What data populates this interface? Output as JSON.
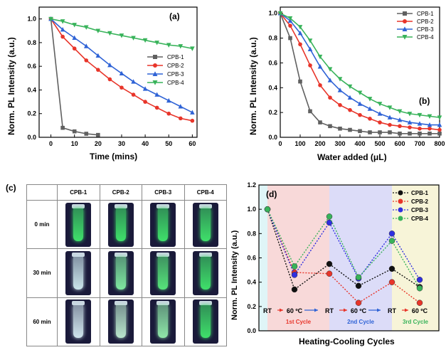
{
  "panels": {
    "a": {
      "label": "(a)"
    },
    "b": {
      "label": "(b)"
    },
    "c": {
      "label": "(c)"
    },
    "d": {
      "label": "(d)"
    }
  },
  "chart_data": [
    {
      "id": "a",
      "type": "line",
      "xlabel": "Time (mins)",
      "ylabel": "Norm. PL Intensity (a.u.)",
      "xlim": [
        -5,
        62
      ],
      "ylim": [
        0,
        1.1
      ],
      "xticks": [
        0,
        10,
        20,
        30,
        40,
        50,
        60
      ],
      "yticks": [
        0.0,
        0.2,
        0.4,
        0.6,
        0.8,
        1.0
      ],
      "legend_position": "center-right",
      "series": [
        {
          "name": "CPB-1",
          "color": "#606060",
          "marker": "square",
          "x": [
            0,
            5,
            10,
            15,
            20
          ],
          "y": [
            1.0,
            0.08,
            0.05,
            0.03,
            0.02
          ]
        },
        {
          "name": "CPB-2",
          "color": "#e8352a",
          "marker": "circle",
          "x": [
            0,
            5,
            10,
            15,
            20,
            25,
            30,
            35,
            40,
            45,
            50,
            55,
            60
          ],
          "y": [
            1.0,
            0.85,
            0.75,
            0.65,
            0.57,
            0.49,
            0.42,
            0.36,
            0.3,
            0.25,
            0.2,
            0.16,
            0.14
          ]
        },
        {
          "name": "CPB-3",
          "color": "#2f63d6",
          "marker": "triangle-up",
          "x": [
            0,
            5,
            10,
            15,
            20,
            25,
            30,
            35,
            40,
            45,
            50,
            55,
            60
          ],
          "y": [
            1.0,
            0.91,
            0.84,
            0.77,
            0.69,
            0.61,
            0.54,
            0.47,
            0.41,
            0.36,
            0.31,
            0.26,
            0.21
          ]
        },
        {
          "name": "CPB-4",
          "color": "#38b35a",
          "marker": "triangle-down",
          "x": [
            0,
            5,
            10,
            15,
            20,
            25,
            30,
            35,
            40,
            45,
            50,
            55,
            60
          ],
          "y": [
            1.0,
            0.98,
            0.95,
            0.93,
            0.9,
            0.88,
            0.86,
            0.84,
            0.82,
            0.8,
            0.78,
            0.77,
            0.75
          ]
        }
      ]
    },
    {
      "id": "b",
      "type": "line",
      "xlabel": "Water added (μL)",
      "ylabel": "Norm. PL Intensity (a.u.)",
      "xlim": [
        0,
        800
      ],
      "ylim": [
        0,
        1.05
      ],
      "xticks": [
        0,
        100,
        200,
        300,
        400,
        500,
        600,
        700,
        800
      ],
      "yticks": [
        0.0,
        0.2,
        0.4,
        0.6,
        0.8,
        1.0
      ],
      "legend_position": "top-right",
      "series": [
        {
          "name": "CPB-1",
          "color": "#606060",
          "marker": "square",
          "x": [
            0,
            50,
            100,
            150,
            200,
            250,
            300,
            350,
            400,
            450,
            500,
            550,
            600,
            650,
            700,
            750,
            800
          ],
          "y": [
            1.0,
            0.8,
            0.45,
            0.21,
            0.12,
            0.09,
            0.07,
            0.06,
            0.05,
            0.04,
            0.04,
            0.04,
            0.03,
            0.03,
            0.03,
            0.03,
            0.03
          ]
        },
        {
          "name": "CPB-2",
          "color": "#e8352a",
          "marker": "circle",
          "x": [
            0,
            50,
            100,
            150,
            200,
            250,
            300,
            350,
            400,
            450,
            500,
            550,
            600,
            650,
            700,
            750,
            800
          ],
          "y": [
            1.0,
            0.9,
            0.75,
            0.58,
            0.42,
            0.32,
            0.26,
            0.22,
            0.18,
            0.15,
            0.12,
            0.1,
            0.09,
            0.08,
            0.07,
            0.07,
            0.06
          ]
        },
        {
          "name": "CPB-3",
          "color": "#2f63d6",
          "marker": "triangle-up",
          "x": [
            0,
            50,
            100,
            150,
            200,
            250,
            300,
            350,
            400,
            450,
            500,
            550,
            600,
            650,
            700,
            750,
            800
          ],
          "y": [
            1.0,
            0.94,
            0.84,
            0.71,
            0.57,
            0.46,
            0.38,
            0.32,
            0.27,
            0.23,
            0.19,
            0.16,
            0.14,
            0.12,
            0.11,
            0.1,
            0.1
          ]
        },
        {
          "name": "CPB-4",
          "color": "#38b35a",
          "marker": "triangle-down",
          "x": [
            0,
            50,
            100,
            150,
            200,
            250,
            300,
            350,
            400,
            450,
            500,
            550,
            600,
            650,
            700,
            750,
            800
          ],
          "y": [
            1.0,
            0.96,
            0.89,
            0.78,
            0.65,
            0.55,
            0.47,
            0.41,
            0.36,
            0.31,
            0.27,
            0.24,
            0.21,
            0.19,
            0.18,
            0.17,
            0.16
          ]
        }
      ]
    },
    {
      "id": "d",
      "type": "line",
      "xlabel": "Heating-Cooling Cycles",
      "ylabel": "Norm. PL Intensity (a.u.)",
      "ylim": [
        0,
        1.2
      ],
      "yticks": [
        0.0,
        0.2,
        0.4,
        0.6,
        0.8,
        1.0,
        1.2
      ],
      "x_categories": [
        "RT",
        "60 ºC",
        "RT",
        "60 ºC",
        "RT",
        "60 ºC"
      ],
      "regions": [
        {
          "label": "",
          "color": "#dff5f7"
        },
        {
          "label": "1st Cycle",
          "color": "#f8d9d9",
          "text_color": "#e8352a"
        },
        {
          "label": "2nd Cycle",
          "color": "#dcdcf8",
          "text_color": "#2f63d6"
        },
        {
          "label": "3rd Cycle",
          "color": "#f7f4d8",
          "text_color": "#38b35a"
        }
      ],
      "legend_position": "top-right",
      "series": [
        {
          "name": "CPB-1",
          "color": "#111111",
          "y": [
            1.0,
            0.34,
            0.55,
            0.37,
            0.51,
            0.36
          ]
        },
        {
          "name": "CPB-2",
          "color": "#e8352a",
          "y": [
            1.0,
            0.48,
            0.47,
            0.23,
            0.4,
            0.23
          ]
        },
        {
          "name": "CPB-3",
          "color": "#2f2fe0",
          "y": [
            1.0,
            0.46,
            0.89,
            0.43,
            0.8,
            0.42
          ]
        },
        {
          "name": "CPB-4",
          "color": "#38b35a",
          "y": [
            1.0,
            0.53,
            0.94,
            0.44,
            0.74,
            0.35
          ]
        }
      ]
    }
  ],
  "panel_c": {
    "columns": [
      "CPB-1",
      "CPB-2",
      "CPB-3",
      "CPB-4"
    ],
    "rows": [
      {
        "label": "0 min",
        "glow": [
          "#3fe06a",
          "#3fe06a",
          "#3fe06a",
          "#3fe06a"
        ]
      },
      {
        "label": "30 min",
        "glow": [
          "#c9e4ea",
          "#7fe8a0",
          "#56e47a",
          "#3fe06a"
        ]
      },
      {
        "label": "60 min",
        "glow": [
          "#cfe4ec",
          "#b9e6cc",
          "#8fe7a8",
          "#3fe06a"
        ]
      }
    ]
  }
}
